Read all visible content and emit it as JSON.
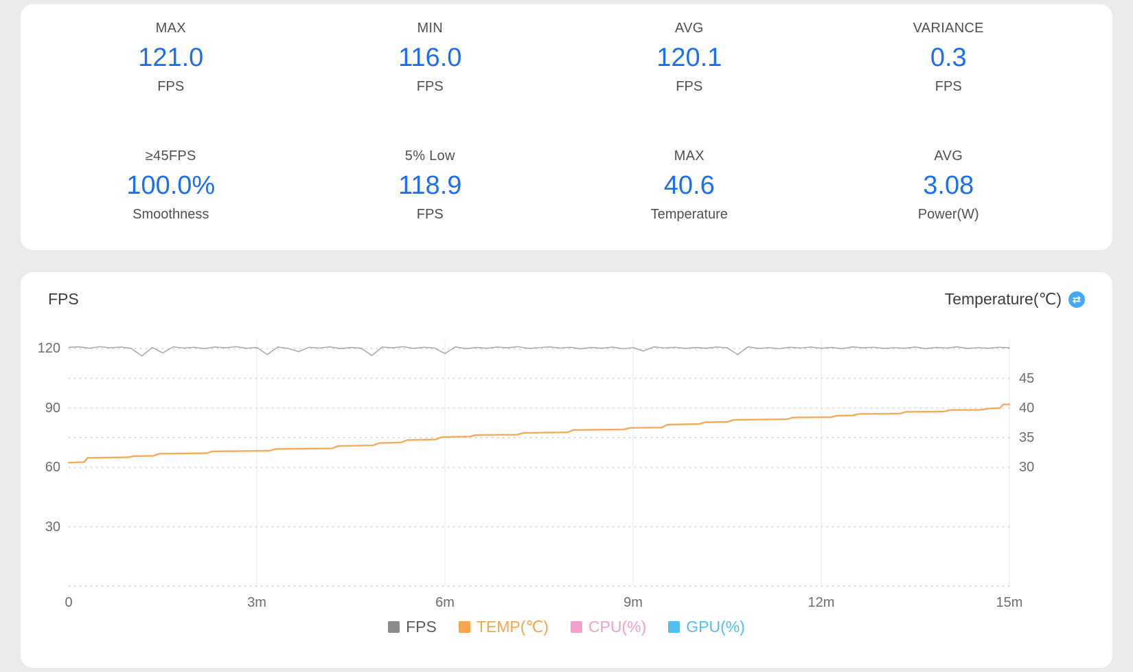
{
  "colors": {
    "accent_blue": "#1b6ef5",
    "swap_icon_blue": "#45a8f7",
    "card_background": "#ffffff",
    "page_background": "#ebebeb"
  },
  "stats": {
    "items": [
      {
        "label": "MAX",
        "value": "121.0",
        "unit": "FPS"
      },
      {
        "label": "MIN",
        "value": "116.0",
        "unit": "FPS"
      },
      {
        "label": "AVG",
        "value": "120.1",
        "unit": "FPS"
      },
      {
        "label": "VARIANCE",
        "value": "0.3",
        "unit": "FPS"
      },
      {
        "label": "≥45FPS",
        "value": "100.0%",
        "unit": "Smoothness"
      },
      {
        "label": "5% Low",
        "value": "118.9",
        "unit": "FPS"
      },
      {
        "label": "MAX",
        "value": "40.6",
        "unit": "Temperature"
      },
      {
        "label": "AVG",
        "value": "3.08",
        "unit": "Power(W)"
      }
    ]
  },
  "chart_data": {
    "type": "line",
    "left_axis": {
      "title": "FPS",
      "min": 0,
      "max": 125,
      "tick_values": [
        120,
        90,
        60,
        30
      ]
    },
    "right_axis": {
      "title": "Temperature(℃)",
      "min": 10,
      "max": 51.667,
      "tick_values": [
        45,
        40,
        35,
        30
      ]
    },
    "x_axis": {
      "min": 0,
      "max": 15,
      "unit": "minutes",
      "tick_values": [
        0,
        3,
        6,
        9,
        12,
        15
      ],
      "tick_labels": [
        "0",
        "3m",
        "6m",
        "9m",
        "12m",
        "15m"
      ]
    },
    "h_gridline_left_values": [
      120,
      105,
      90,
      75,
      60,
      30,
      0
    ],
    "v_gridline_x_values": [
      3,
      6,
      9,
      12,
      15
    ],
    "grid": true,
    "legend_position": "bottom",
    "series": [
      {
        "id": "fps",
        "name": "FPS",
        "axis": "left",
        "color": "#ababab",
        "width": 1.6,
        "values": [
          120.7,
          120.9,
          120.2,
          121.0,
          120.4,
          120.8,
          120.1,
          116.3,
          120.6,
          117.8,
          120.9,
          120.3,
          120.7,
          120.0,
          120.8,
          120.4,
          121.0,
          120.2,
          120.6,
          117.0,
          120.8,
          120.1,
          118.5,
          120.7,
          120.3,
          120.9,
          120.0,
          120.6,
          120.2,
          116.5,
          120.8,
          120.4,
          121.0,
          120.1,
          120.7,
          120.3,
          117.5,
          120.9,
          120.0,
          120.6,
          120.2,
          120.8,
          120.4,
          121.0,
          120.1,
          120.5,
          120.9,
          120.3,
          120.7,
          119.9,
          120.6,
          120.2,
          120.8,
          120.0,
          120.5,
          118.8,
          120.9,
          120.3,
          120.7,
          120.1,
          120.6,
          120.2,
          120.8,
          120.4,
          117.0,
          120.9,
          120.1,
          120.5,
          120.0,
          120.7,
          120.3,
          120.8,
          120.2,
          120.6,
          120.0,
          120.9,
          120.4,
          120.7,
          120.1,
          120.5,
          120.2,
          120.8,
          120.0,
          120.6,
          120.3,
          120.9,
          120.1,
          120.5,
          120.2,
          120.7,
          120.4
        ]
      },
      {
        "id": "temp",
        "name": "TEMP(℃)",
        "axis": "right",
        "color": "#f4ab5e",
        "width": 2.4,
        "points": [
          [
            0,
            30.8
          ],
          [
            0.25,
            30.9
          ],
          [
            0.3,
            31.6
          ],
          [
            0.95,
            31.7
          ],
          [
            1.05,
            31.9
          ],
          [
            1.35,
            31.95
          ],
          [
            1.45,
            32.3
          ],
          [
            2.2,
            32.4
          ],
          [
            2.3,
            32.7
          ],
          [
            3.2,
            32.8
          ],
          [
            3.3,
            33.1
          ],
          [
            4.2,
            33.2
          ],
          [
            4.3,
            33.6
          ],
          [
            4.85,
            33.7
          ],
          [
            4.95,
            34.1
          ],
          [
            5.3,
            34.2
          ],
          [
            5.4,
            34.6
          ],
          [
            5.85,
            34.7
          ],
          [
            5.95,
            35.1
          ],
          [
            6.4,
            35.2
          ],
          [
            6.5,
            35.45
          ],
          [
            7.15,
            35.5
          ],
          [
            7.25,
            35.8
          ],
          [
            7.95,
            35.9
          ],
          [
            8.05,
            36.3
          ],
          [
            8.85,
            36.4
          ],
          [
            8.95,
            36.65
          ],
          [
            9.45,
            36.7
          ],
          [
            9.55,
            37.2
          ],
          [
            10.05,
            37.3
          ],
          [
            10.15,
            37.6
          ],
          [
            10.5,
            37.65
          ],
          [
            10.6,
            38.0
          ],
          [
            11.45,
            38.1
          ],
          [
            11.55,
            38.4
          ],
          [
            12.15,
            38.45
          ],
          [
            12.25,
            38.7
          ],
          [
            12.5,
            38.75
          ],
          [
            12.6,
            39.0
          ],
          [
            13.25,
            39.05
          ],
          [
            13.35,
            39.35
          ],
          [
            13.95,
            39.4
          ],
          [
            14.05,
            39.65
          ],
          [
            14.55,
            39.7
          ],
          [
            14.65,
            39.9
          ],
          [
            14.85,
            40.0
          ],
          [
            14.9,
            40.6
          ],
          [
            15,
            40.6
          ]
        ]
      },
      {
        "id": "cpu",
        "name": "CPU(%)",
        "axis": "right",
        "color": "#f29fcb",
        "width": 2,
        "values": []
      },
      {
        "id": "gpu",
        "name": "GPU(%)",
        "axis": "right",
        "color": "#4fc0f0",
        "width": 2,
        "values": []
      }
    ],
    "legend": [
      {
        "id": "fps",
        "label": "FPS",
        "swatch": "#8c8c8c",
        "text": "#5c5c5c"
      },
      {
        "id": "temp",
        "label": "TEMP(℃)",
        "swatch": "#f5a54b",
        "text": "#f5a54b"
      },
      {
        "id": "cpu",
        "label": "CPU(%)",
        "swatch": "#f29fcb",
        "text": "#f29fcb"
      },
      {
        "id": "gpu",
        "label": "GPU(%)",
        "swatch": "#4fc0f0",
        "text": "#4fc0f0"
      }
    ],
    "swap_icon_glyph": "⇄"
  }
}
